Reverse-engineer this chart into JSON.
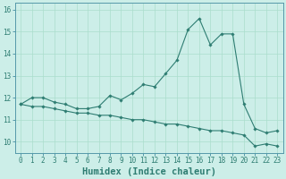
{
  "title": "",
  "xlabel": "Humidex (Indice chaleur)",
  "ylabel": "",
  "bg_color": "#cceee8",
  "grid_color": "#aaddcc",
  "line_color": "#2e7d72",
  "spine_color": "#5599aa",
  "x_values": [
    0,
    1,
    2,
    3,
    4,
    5,
    6,
    7,
    8,
    9,
    10,
    11,
    12,
    13,
    14,
    15,
    16,
    17,
    18,
    19,
    20,
    21,
    22,
    23
  ],
  "y1_values": [
    11.7,
    12.0,
    12.0,
    11.8,
    11.7,
    11.5,
    11.5,
    11.6,
    12.1,
    11.9,
    12.2,
    12.6,
    12.5,
    13.1,
    13.7,
    15.1,
    15.6,
    14.4,
    14.9,
    14.9,
    11.7,
    10.6,
    10.4,
    10.5
  ],
  "y2_values": [
    11.7,
    11.6,
    11.6,
    11.5,
    11.4,
    11.3,
    11.3,
    11.2,
    11.2,
    11.1,
    11.0,
    11.0,
    10.9,
    10.8,
    10.8,
    10.7,
    10.6,
    10.5,
    10.5,
    10.4,
    10.3,
    9.8,
    9.9,
    9.8
  ],
  "ylim": [
    9.5,
    16.3
  ],
  "xlim": [
    -0.5,
    23.5
  ],
  "yticks": [
    10,
    11,
    12,
    13,
    14,
    15,
    16
  ],
  "xticks": [
    0,
    1,
    2,
    3,
    4,
    5,
    6,
    7,
    8,
    9,
    10,
    11,
    12,
    13,
    14,
    15,
    16,
    17,
    18,
    19,
    20,
    21,
    22,
    23
  ],
  "tick_fontsize": 5.5,
  "xlabel_fontsize": 7.5
}
